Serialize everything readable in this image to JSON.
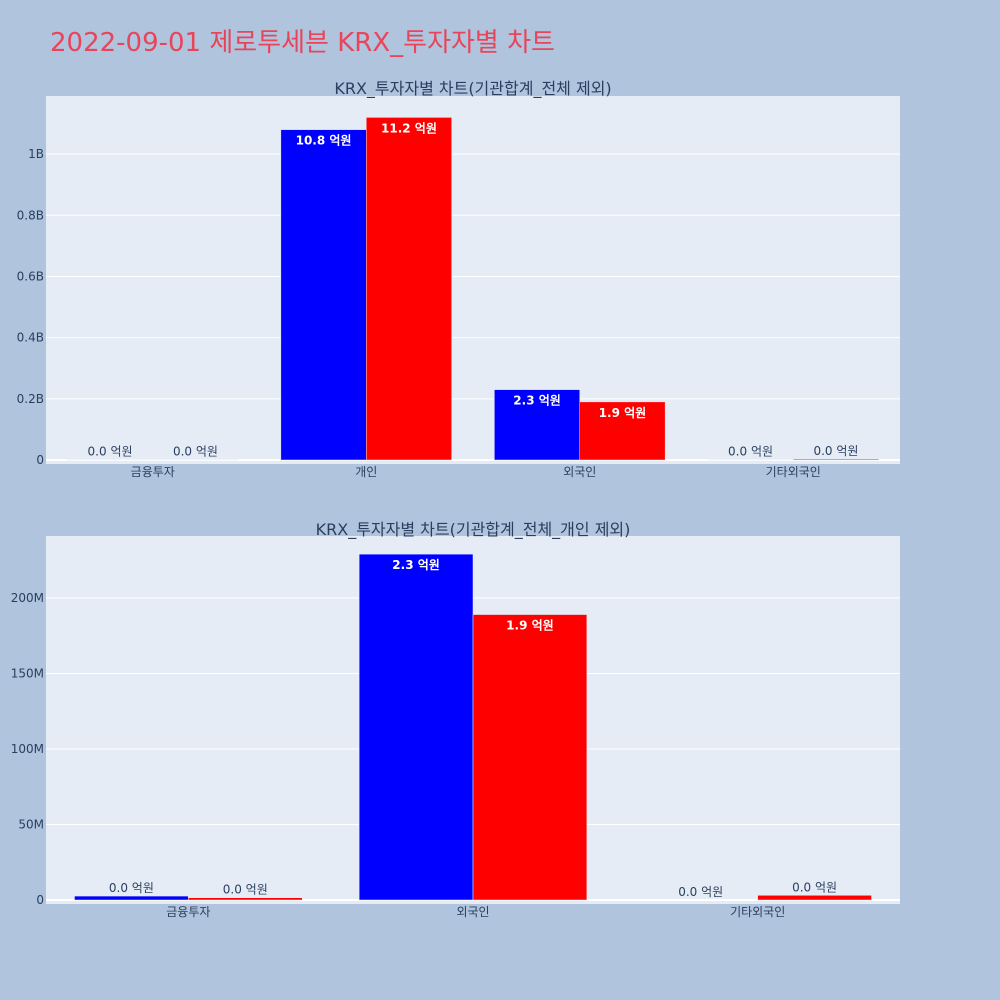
{
  "page": {
    "title": "2022-09-01 제로투세븐 KRX_투자자별 차트"
  },
  "colors": {
    "series1": "#0000ff",
    "series2": "#ff0000",
    "plot_bg": "#e5ecf6",
    "page_bg": "#b0c4de",
    "title": "#e8455a"
  },
  "chart_data": [
    {
      "type": "bar",
      "title": "KRX_투자자별 차트(기관합계_전체 제외)",
      "categories": [
        "금융투자",
        "개인",
        "외국인",
        "기타외국인"
      ],
      "series": [
        {
          "values": [
            1000000,
            1080000000,
            230000000,
            1000000
          ],
          "labels": [
            "0.0 억원",
            "10.8 억원",
            "2.3 억원",
            "0.0 억원"
          ],
          "color": "#0000ff"
        },
        {
          "values": [
            1000000,
            1120000000,
            190000000,
            3000000
          ],
          "labels": [
            "0.0 억원",
            "11.2 억원",
            "1.9 억원",
            "0.0 억원"
          ],
          "color": "#ff0000"
        }
      ],
      "yticks": [
        0,
        200000000,
        400000000,
        600000000,
        800000000,
        1000000000
      ],
      "ytick_labels": [
        "0",
        "0.2B",
        "0.4B",
        "0.6B",
        "0.8B",
        "1B"
      ],
      "ylim": [
        0,
        1190000000
      ],
      "grid": true
    },
    {
      "type": "bar",
      "title": "KRX_투자자별 차트(기관합계_전체_개인 제외)",
      "categories": [
        "금융투자",
        "외국인",
        "기타외국인"
      ],
      "series": [
        {
          "values": [
            2600000,
            229000000,
            0
          ],
          "labels": [
            "0.0 억원",
            "2.3 억원",
            "0.0 억원"
          ],
          "color": "#0000ff"
        },
        {
          "values": [
            1500000,
            189000000,
            3100000
          ],
          "labels": [
            "0.0 억원",
            "1.9 억원",
            "0.0 억원"
          ],
          "color": "#ff0000"
        }
      ],
      "yticks": [
        0,
        50000000,
        100000000,
        150000000,
        200000000
      ],
      "ytick_labels": [
        "0",
        "50M",
        "100M",
        "150M",
        "200M"
      ],
      "ylim": [
        0,
        241000000
      ],
      "grid": true
    }
  ]
}
